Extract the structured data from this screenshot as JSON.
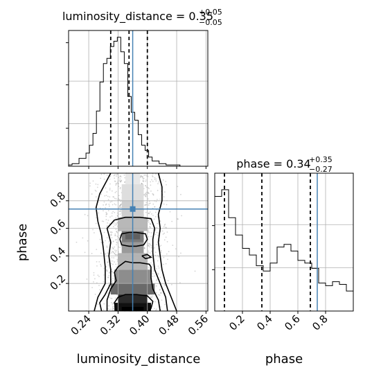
{
  "chart_data": [
    {
      "panel": "luminosity_distance-marginal",
      "type": "histogram",
      "title": {
        "prefix": "luminosity_distance = 0.35",
        "plus": "+0.05",
        "minus": "−0.05"
      },
      "xlim": [
        0.185,
        0.565
      ],
      "bins_start": 0.185,
      "bin_width": 0.0095,
      "counts": [
        0.01,
        0.02,
        0.02,
        0.06,
        0.06,
        0.1,
        0.16,
        0.25,
        0.42,
        0.64,
        0.78,
        0.82,
        0.91,
        0.95,
        0.98,
        0.87,
        0.78,
        0.53,
        0.41,
        0.35,
        0.24,
        0.16,
        0.12,
        0.07,
        0.04,
        0.04,
        0.02,
        0.02,
        0.01,
        0.01,
        0.01,
        0.01,
        0.0,
        0.0,
        0.0,
        0.0,
        0.0,
        0.0,
        0.0,
        0.0
      ],
      "quantile_lines": [
        0.3,
        0.35,
        0.4
      ],
      "truth": 0.36
    },
    {
      "panel": "phase-marginal",
      "type": "histogram",
      "title": {
        "prefix": "phase = 0.34",
        "plus": "+0.35",
        "minus": "−0.27"
      },
      "xlim": [
        0.0,
        1.0
      ],
      "bins_start": 0.0,
      "bin_width": 0.05,
      "counts": [
        0.86,
        0.91,
        0.7,
        0.57,
        0.47,
        0.42,
        0.34,
        0.3,
        0.36,
        0.48,
        0.5,
        0.45,
        0.38,
        0.36,
        0.32,
        0.21,
        0.19,
        0.22,
        0.2,
        0.15
      ],
      "quantile_lines": [
        0.07,
        0.34,
        0.69
      ],
      "truth": 0.74
    },
    {
      "panel": "2d-density",
      "type": "heatmap",
      "xlabel": "luminosity_distance",
      "ylabel": "phase",
      "xlim": [
        0.185,
        0.565
      ],
      "ylim": [
        0.0,
        1.0
      ],
      "xticks": [
        "0.24",
        "0.32",
        "0.40",
        "0.48",
        "0.56"
      ],
      "xtick_values": [
        0.24,
        0.32,
        0.4,
        0.48,
        0.56
      ],
      "yticks": [
        "0.2",
        "0.4",
        "0.6",
        "0.8"
      ],
      "ytick_values": [
        0.2,
        0.4,
        0.6,
        0.8
      ],
      "truth": [
        0.36,
        0.74
      ]
    }
  ],
  "phase_axis": {
    "xlabel": "phase",
    "xticks": [
      "0.2",
      "0.4",
      "0.6",
      "0.8"
    ],
    "xtick_values": [
      0.2,
      0.4,
      0.6,
      0.8
    ]
  },
  "colors": {
    "truth": "#4682b4",
    "hist": "#000000",
    "grid": "#b0b0b0"
  }
}
